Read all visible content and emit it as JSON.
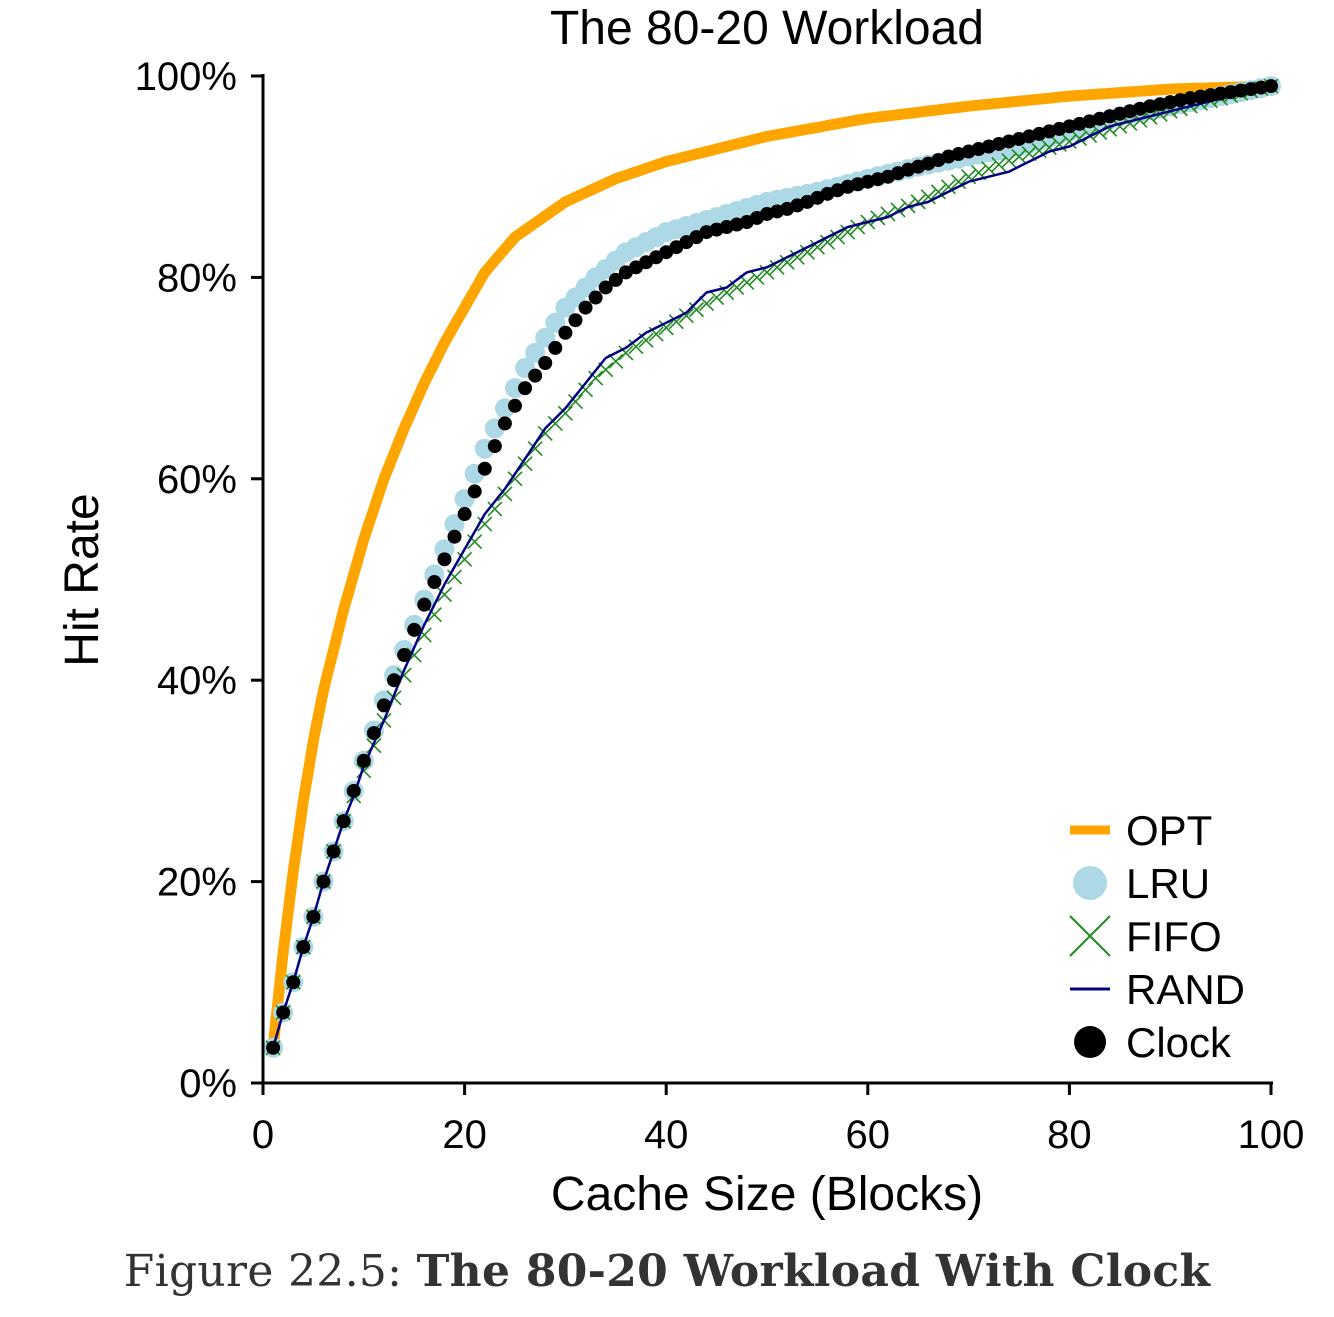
{
  "colors": {
    "OPT": "#ffa500",
    "LRU": "#add8e6",
    "FIFO": "#228b22",
    "RAND": "#000080",
    "Clock": "#000000",
    "axis": "#000000",
    "caption": "#333333"
  },
  "caption": {
    "prefix": "Figure 22.5:",
    "title": "The 80-20 Workload With Clock"
  },
  "chart_data": {
    "type": "line",
    "title": "The 80-20 Workload",
    "xlabel": "Cache Size (Blocks)",
    "ylabel": "Hit Rate",
    "xlim": [
      0,
      100
    ],
    "ylim": [
      0,
      100
    ],
    "xticks": [
      0,
      20,
      40,
      60,
      80,
      100
    ],
    "xtick_labels": [
      "0",
      "20",
      "40",
      "60",
      "80",
      "100"
    ],
    "yticks": [
      0,
      20,
      40,
      60,
      80,
      100
    ],
    "ytick_labels": [
      "0%",
      "20%",
      "40%",
      "60%",
      "80%",
      "100%"
    ],
    "grid": false,
    "legend_position": "bottom-right",
    "x_domain": [
      1,
      100
    ],
    "series": [
      {
        "name": "OPT",
        "marker": "thick-line",
        "points": [
          [
            1,
            3.5
          ],
          [
            2,
            13
          ],
          [
            3,
            21
          ],
          [
            4,
            28
          ],
          [
            5,
            34
          ],
          [
            6,
            39
          ],
          [
            8,
            47
          ],
          [
            10,
            54
          ],
          [
            12,
            60
          ],
          [
            14,
            65
          ],
          [
            16,
            69.5
          ],
          [
            18,
            73.5
          ],
          [
            20,
            77
          ],
          [
            22,
            80.5
          ],
          [
            25,
            84
          ],
          [
            30,
            87.5
          ],
          [
            35,
            89.8
          ],
          [
            40,
            91.5
          ],
          [
            50,
            94
          ],
          [
            60,
            95.8
          ],
          [
            70,
            97
          ],
          [
            80,
            98
          ],
          [
            90,
            98.7
          ],
          [
            100,
            99
          ]
        ]
      },
      {
        "name": "LRU",
        "marker": "large-circle",
        "points": [
          [
            1,
            3.5
          ],
          [
            2,
            7
          ],
          [
            3,
            10
          ],
          [
            4,
            13.5
          ],
          [
            5,
            16.5
          ],
          [
            6,
            20
          ],
          [
            7,
            23
          ],
          [
            8,
            26
          ],
          [
            9,
            29
          ],
          [
            10,
            32
          ],
          [
            12,
            38
          ],
          [
            14,
            43
          ],
          [
            16,
            48
          ],
          [
            18,
            53
          ],
          [
            20,
            58
          ],
          [
            22,
            63
          ],
          [
            24,
            67
          ],
          [
            26,
            71
          ],
          [
            28,
            74
          ],
          [
            30,
            77
          ],
          [
            33,
            80
          ],
          [
            36,
            82.5
          ],
          [
            40,
            84.5
          ],
          [
            45,
            86
          ],
          [
            50,
            87.5
          ],
          [
            55,
            88.5
          ],
          [
            60,
            89.8
          ],
          [
            65,
            91
          ],
          [
            70,
            92
          ],
          [
            75,
            93
          ],
          [
            80,
            94.5
          ],
          [
            85,
            96
          ],
          [
            90,
            97
          ],
          [
            95,
            98
          ],
          [
            100,
            99
          ]
        ]
      },
      {
        "name": "FIFO",
        "marker": "x",
        "points": [
          [
            1,
            3.5
          ],
          [
            2,
            7
          ],
          [
            3,
            10
          ],
          [
            4,
            13.5
          ],
          [
            5,
            16.5
          ],
          [
            6,
            20
          ],
          [
            7,
            23
          ],
          [
            8,
            26
          ],
          [
            9,
            28.5
          ],
          [
            10,
            31
          ],
          [
            12,
            36
          ],
          [
            14,
            40.5
          ],
          [
            16,
            44.5
          ],
          [
            18,
            48.5
          ],
          [
            20,
            52
          ],
          [
            22,
            55.5
          ],
          [
            24,
            58.5
          ],
          [
            26,
            61.5
          ],
          [
            28,
            64.5
          ],
          [
            30,
            66.5
          ],
          [
            33,
            70
          ],
          [
            36,
            72.5
          ],
          [
            40,
            75
          ],
          [
            45,
            78
          ],
          [
            50,
            80.5
          ],
          [
            55,
            83
          ],
          [
            60,
            85.5
          ],
          [
            65,
            87.5
          ],
          [
            70,
            90
          ],
          [
            75,
            92
          ],
          [
            80,
            93.5
          ],
          [
            85,
            95
          ],
          [
            90,
            96.5
          ],
          [
            95,
            97.8
          ],
          [
            100,
            99
          ]
        ]
      },
      {
        "name": "RAND",
        "marker": "thin-line",
        "points": [
          [
            1,
            3.5
          ],
          [
            2,
            7
          ],
          [
            3,
            10
          ],
          [
            4,
            13.5
          ],
          [
            5,
            16.5
          ],
          [
            6,
            20
          ],
          [
            7,
            23
          ],
          [
            8,
            26
          ],
          [
            9,
            28.5
          ],
          [
            10,
            31.5
          ],
          [
            12,
            36
          ],
          [
            14,
            41
          ],
          [
            16,
            45.5
          ],
          [
            18,
            49.5
          ],
          [
            20,
            53
          ],
          [
            22,
            56.5
          ],
          [
            24,
            59
          ],
          [
            26,
            62
          ],
          [
            28,
            65
          ],
          [
            30,
            67
          ],
          [
            32,
            69.5
          ],
          [
            34,
            72
          ],
          [
            36,
            73
          ],
          [
            38,
            74.5
          ],
          [
            40,
            75.5
          ],
          [
            42,
            76.5
          ],
          [
            44,
            78.5
          ],
          [
            46,
            79
          ],
          [
            48,
            80.5
          ],
          [
            50,
            81
          ],
          [
            52,
            82
          ],
          [
            54,
            83
          ],
          [
            56,
            84
          ],
          [
            58,
            85
          ],
          [
            60,
            85.5
          ],
          [
            62,
            86
          ],
          [
            64,
            87
          ],
          [
            66,
            87.5
          ],
          [
            68,
            88.5
          ],
          [
            70,
            89.5
          ],
          [
            72,
            90
          ],
          [
            74,
            90.5
          ],
          [
            76,
            91.5
          ],
          [
            78,
            92.5
          ],
          [
            80,
            93
          ],
          [
            82,
            94
          ],
          [
            84,
            95
          ],
          [
            86,
            95.5
          ],
          [
            88,
            96
          ],
          [
            90,
            96.5
          ],
          [
            92,
            97
          ],
          [
            94,
            97.5
          ],
          [
            96,
            98
          ],
          [
            98,
            98.5
          ],
          [
            100,
            99
          ]
        ]
      },
      {
        "name": "Clock",
        "marker": "dot",
        "points": [
          [
            1,
            3.5
          ],
          [
            2,
            7
          ],
          [
            3,
            10
          ],
          [
            4,
            13.5
          ],
          [
            5,
            16.5
          ],
          [
            6,
            20
          ],
          [
            7,
            23
          ],
          [
            8,
            26
          ],
          [
            9,
            29
          ],
          [
            10,
            32
          ],
          [
            12,
            37.5
          ],
          [
            14,
            42.5
          ],
          [
            16,
            47.5
          ],
          [
            18,
            52
          ],
          [
            20,
            56.5
          ],
          [
            22,
            61
          ],
          [
            24,
            65.5
          ],
          [
            26,
            69
          ],
          [
            28,
            71.5
          ],
          [
            30,
            74.5
          ],
          [
            32,
            77
          ],
          [
            34,
            79
          ],
          [
            36,
            80.5
          ],
          [
            38,
            81.5
          ],
          [
            40,
            82.5
          ],
          [
            42,
            83.5
          ],
          [
            44,
            84.5
          ],
          [
            46,
            85
          ],
          [
            48,
            85.5
          ],
          [
            50,
            86.3
          ],
          [
            52,
            86.8
          ],
          [
            54,
            87.5
          ],
          [
            56,
            88.3
          ],
          [
            58,
            89
          ],
          [
            60,
            89.5
          ],
          [
            62,
            90
          ],
          [
            64,
            90.7
          ],
          [
            66,
            91.3
          ],
          [
            68,
            92
          ],
          [
            70,
            92.5
          ],
          [
            72,
            93
          ],
          [
            74,
            93.5
          ],
          [
            76,
            94
          ],
          [
            78,
            94.5
          ],
          [
            80,
            95
          ],
          [
            82,
            95.5
          ],
          [
            84,
            96
          ],
          [
            86,
            96.5
          ],
          [
            88,
            97
          ],
          [
            90,
            97.4
          ],
          [
            92,
            97.8
          ],
          [
            94,
            98.1
          ],
          [
            96,
            98.4
          ],
          [
            98,
            98.7
          ],
          [
            100,
            99
          ]
        ]
      }
    ]
  }
}
